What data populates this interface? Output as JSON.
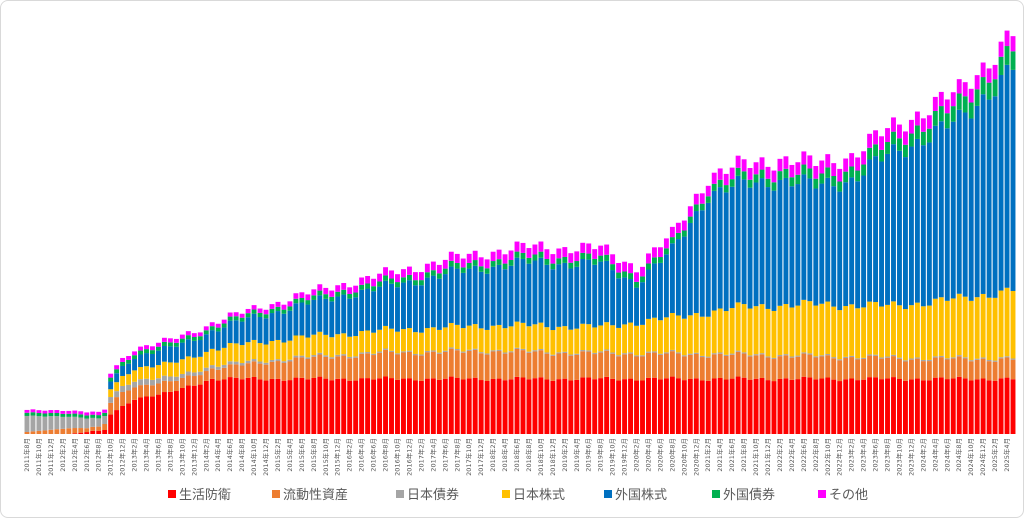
{
  "chart_data": {
    "type": "bar",
    "stacked": true,
    "title": "",
    "xlabel": "",
    "ylabel": "",
    "ylim": [
      0,
      100
    ],
    "grid": false,
    "legend_position": "bottom",
    "start": "2011-08",
    "end": "2025-05",
    "month_label_format": "{y}年{m}月",
    "tick_every_months": 2,
    "series": [
      {
        "name": "生活防衛",
        "color": "#FF0000",
        "knots": [
          [
            0,
            0
          ],
          [
            7,
            0
          ],
          [
            10,
            0.5
          ],
          [
            11,
            0.8
          ],
          [
            12,
            0.8
          ],
          [
            13,
            1
          ],
          [
            14,
            5
          ],
          [
            16,
            7
          ],
          [
            18,
            9
          ],
          [
            20,
            9.5
          ],
          [
            22,
            10
          ],
          [
            24,
            10.5
          ],
          [
            26,
            11.5
          ],
          [
            28,
            12.5
          ],
          [
            30,
            13.5
          ],
          [
            31,
            14
          ],
          [
            33,
            14
          ],
          [
            168,
            14
          ],
          [
            169,
            16
          ],
          [
            180,
            16
          ]
        ]
      },
      {
        "name": "流動性資産",
        "color": "#ED7D31",
        "knots": [
          [
            0,
            0.5
          ],
          [
            7,
            1.5
          ],
          [
            10,
            1
          ],
          [
            12,
            1
          ],
          [
            13,
            1.5
          ],
          [
            14,
            3
          ],
          [
            16,
            3.5
          ],
          [
            20,
            3
          ],
          [
            26,
            2.5
          ],
          [
            30,
            2.5
          ],
          [
            33,
            3
          ],
          [
            45,
            5
          ],
          [
            60,
            6.5
          ],
          [
            78,
            7
          ],
          [
            90,
            6.5
          ],
          [
            120,
            6
          ],
          [
            150,
            5
          ],
          [
            168,
            5
          ],
          [
            169,
            8
          ],
          [
            180,
            7
          ]
        ]
      },
      {
        "name": "日本債券",
        "color": "#A5A5A5",
        "knots": [
          [
            0,
            4
          ],
          [
            7,
            3
          ],
          [
            10,
            2.5
          ],
          [
            12,
            2
          ],
          [
            13,
            2
          ],
          [
            14,
            1.5
          ],
          [
            20,
            1.5
          ],
          [
            26,
            1
          ],
          [
            40,
            0.5
          ],
          [
            60,
            0.3
          ],
          [
            180,
            0.3
          ]
        ]
      },
      {
        "name": "日本株式",
        "color": "#FFC000",
        "knots": [
          [
            0,
            0
          ],
          [
            13,
            0
          ],
          [
            14,
            2
          ],
          [
            18,
            3
          ],
          [
            24,
            3.5
          ],
          [
            30,
            4
          ],
          [
            34,
            4.5
          ],
          [
            45,
            5
          ],
          [
            60,
            5.5
          ],
          [
            72,
            6
          ],
          [
            84,
            6.5
          ],
          [
            96,
            6.5
          ],
          [
            108,
            9
          ],
          [
            120,
            12
          ],
          [
            132,
            13
          ],
          [
            144,
            13
          ],
          [
            156,
            15
          ],
          [
            168,
            18
          ],
          [
            169,
            15
          ],
          [
            180,
            16
          ]
        ]
      },
      {
        "name": "外国株式",
        "color": "#0070C0",
        "knots": [
          [
            0,
            0
          ],
          [
            13,
            0
          ],
          [
            14,
            2
          ],
          [
            18,
            3
          ],
          [
            24,
            4
          ],
          [
            30,
            4.5
          ],
          [
            36,
            6
          ],
          [
            45,
            8
          ],
          [
            54,
            10
          ],
          [
            60,
            11
          ],
          [
            72,
            14
          ],
          [
            84,
            16
          ],
          [
            96,
            16
          ],
          [
            102,
            10
          ],
          [
            108,
            17
          ],
          [
            114,
            30
          ],
          [
            126,
            32
          ],
          [
            132,
            30
          ],
          [
            138,
            32
          ],
          [
            144,
            38
          ],
          [
            150,
            42
          ],
          [
            156,
            45
          ],
          [
            162,
            53
          ],
          [
            168,
            60
          ],
          [
            169,
            57
          ],
          [
            174,
            56
          ],
          [
            180,
            54
          ]
        ]
      },
      {
        "name": "外国債券",
        "color": "#00B050",
        "knots": [
          [
            0,
            0.8
          ],
          [
            13,
            0.8
          ],
          [
            14,
            1
          ],
          [
            24,
            1
          ],
          [
            36,
            1
          ],
          [
            60,
            1.3
          ],
          [
            84,
            1.5
          ],
          [
            96,
            1.5
          ],
          [
            108,
            1.5
          ],
          [
            120,
            2
          ],
          [
            132,
            2.5
          ],
          [
            144,
            3
          ],
          [
            156,
            4
          ],
          [
            168,
            5
          ],
          [
            180,
            5
          ]
        ]
      },
      {
        "name": "その他",
        "color": "#FF00FF",
        "knots": [
          [
            0,
            0.7
          ],
          [
            13,
            0.8
          ],
          [
            14,
            1
          ],
          [
            24,
            1
          ],
          [
            36,
            1
          ],
          [
            48,
            1.5
          ],
          [
            60,
            2
          ],
          [
            84,
            2.5
          ],
          [
            96,
            2.5
          ],
          [
            108,
            2.5
          ],
          [
            120,
            3
          ],
          [
            144,
            3.5
          ],
          [
            156,
            3.5
          ],
          [
            168,
            4
          ],
          [
            180,
            4
          ]
        ]
      }
    ]
  }
}
